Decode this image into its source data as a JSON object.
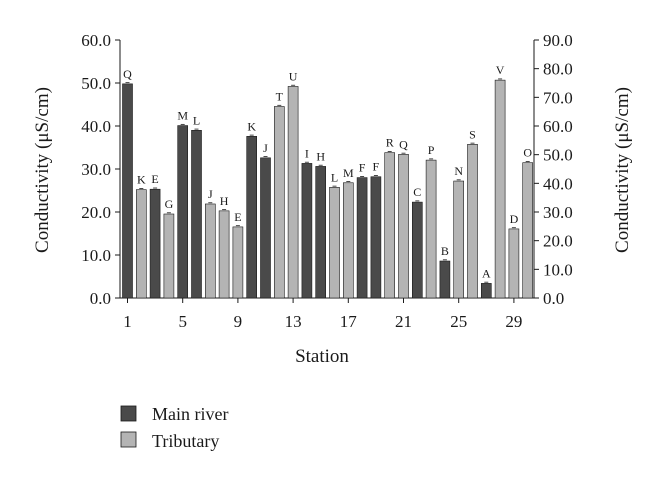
{
  "chart_data": {
    "type": "bar",
    "xlabel": "Station",
    "ylabel_left": "Conductivity (μS/cm)",
    "ylabel_right": "Conductivity (μS/cm)",
    "ylim_left": [
      0,
      60
    ],
    "ylim_right": [
      0,
      90
    ],
    "yticks_left": [
      "0.0",
      "10.0",
      "20.0",
      "30.0",
      "40.0",
      "50.0",
      "60.0"
    ],
    "yticks_right": [
      "0.0",
      "10.0",
      "20.0",
      "30.0",
      "40.0",
      "50.0",
      "60.0",
      "70.0",
      "80.0",
      "90.0"
    ],
    "xticks": [
      "1",
      "5",
      "9",
      "13",
      "17",
      "21",
      "25",
      "29"
    ],
    "legend_position": "bottom-left",
    "colors": {
      "main": "#4a4a4a",
      "tributary": "#b4b4b4",
      "axis": "#1a1a1a"
    },
    "series": [
      {
        "name": "Main river",
        "axis": "left"
      },
      {
        "name": "Tributary",
        "axis": "right"
      }
    ],
    "bars": [
      {
        "station": 1,
        "series": "Main river",
        "value": 49.8,
        "label": "Q"
      },
      {
        "station": 2,
        "series": "Tributary",
        "value": 37.8,
        "label": "K"
      },
      {
        "station": 3,
        "series": "Main river",
        "value": 25.3,
        "label": "E"
      },
      {
        "station": 4,
        "series": "Tributary",
        "value": 29.3,
        "label": "G"
      },
      {
        "station": 5,
        "series": "Main river",
        "value": 40.1,
        "label": "M"
      },
      {
        "station": 6,
        "series": "Main river",
        "value": 39.0,
        "label": "L"
      },
      {
        "station": 7,
        "series": "Tributary",
        "value": 32.8,
        "label": "J"
      },
      {
        "station": 8,
        "series": "Tributary",
        "value": 30.4,
        "label": "H"
      },
      {
        "station": 9,
        "series": "Tributary",
        "value": 24.8,
        "label": "E"
      },
      {
        "station": 10,
        "series": "Main river",
        "value": 37.6,
        "label": "K"
      },
      {
        "station": 11,
        "series": "Main river",
        "value": 32.6,
        "label": "J"
      },
      {
        "station": 12,
        "series": "Tributary",
        "value": 66.8,
        "label": "T"
      },
      {
        "station": 13,
        "series": "Tributary",
        "value": 73.8,
        "label": "U"
      },
      {
        "station": 14,
        "series": "Main river",
        "value": 31.3,
        "label": "I"
      },
      {
        "station": 15,
        "series": "Main river",
        "value": 30.6,
        "label": "H"
      },
      {
        "station": 16,
        "series": "Tributary",
        "value": 38.6,
        "label": "L"
      },
      {
        "station": 17,
        "series": "Tributary",
        "value": 40.2,
        "label": "M"
      },
      {
        "station": 18,
        "series": "Main river",
        "value": 28.0,
        "label": "F"
      },
      {
        "station": 19,
        "series": "Main river",
        "value": 28.2,
        "label": "F"
      },
      {
        "station": 20,
        "series": "Tributary",
        "value": 50.7,
        "label": "R"
      },
      {
        "station": 21,
        "series": "Tributary",
        "value": 50.1,
        "label": "Q"
      },
      {
        "station": 22,
        "series": "Main river",
        "value": 22.3,
        "label": "C"
      },
      {
        "station": 23,
        "series": "Tributary",
        "value": 48.1,
        "label": "P"
      },
      {
        "station": 24,
        "series": "Main river",
        "value": 8.6,
        "label": "B"
      },
      {
        "station": 25,
        "series": "Tributary",
        "value": 40.8,
        "label": "N"
      },
      {
        "station": 26,
        "series": "Tributary",
        "value": 53.6,
        "label": "S"
      },
      {
        "station": 27,
        "series": "Main river",
        "value": 3.4,
        "label": "A"
      },
      {
        "station": 28,
        "series": "Tributary",
        "value": 76.0,
        "label": "V"
      },
      {
        "station": 29,
        "series": "Tributary",
        "value": 24.1,
        "label": "D"
      },
      {
        "station": 30,
        "series": "Tributary",
        "value": 47.2,
        "label": "O"
      }
    ]
  }
}
